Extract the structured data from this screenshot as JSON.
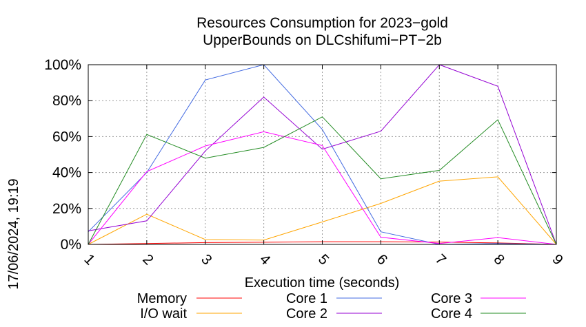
{
  "timestamp": "17/06/2024, 19:19",
  "chart_data": {
    "type": "line",
    "title": [
      "Resources Consumption for 2023−gold",
      "UpperBounds on DLCshifumi−PT−2b"
    ],
    "xlabel": "Execution time (seconds)",
    "ylabel": "",
    "x": [
      1,
      2,
      3,
      4,
      5,
      6,
      7,
      8,
      9
    ],
    "x_tick_labels": [
      "1",
      "2",
      "3",
      "4",
      "5",
      "6",
      "7",
      "8",
      "9"
    ],
    "xlim": [
      1,
      9
    ],
    "ylim": [
      0,
      100
    ],
    "y_ticks": [
      0,
      20,
      40,
      60,
      80,
      100
    ],
    "y_tick_labels": [
      "0%",
      "20%",
      "40%",
      "60%",
      "80%",
      "100%"
    ],
    "grid": true,
    "legend_position": "bottom",
    "series": [
      {
        "name": "Memory",
        "color": "#ff0000",
        "values": [
          0,
          0.5,
          1,
          1.2,
          1.5,
          1.5,
          1.3,
          0.8,
          0
        ]
      },
      {
        "name": "I/O wait",
        "color": "#ffa500",
        "values": [
          0,
          16.8,
          2.7,
          2.4,
          12.5,
          22.8,
          35.2,
          37.6,
          0
        ]
      },
      {
        "name": "Core 1",
        "color": "#4169e1",
        "values": [
          7,
          40,
          91.5,
          100,
          64,
          7,
          0,
          0.5,
          0
        ]
      },
      {
        "name": "Core 2",
        "color": "#9400d3",
        "values": [
          7.5,
          13.1,
          52,
          82,
          53,
          63,
          100,
          88,
          0
        ]
      },
      {
        "name": "Core 3",
        "color": "#ff00ff",
        "values": [
          0,
          40.5,
          54.8,
          62.7,
          55,
          4,
          0.5,
          3.8,
          0
        ]
      },
      {
        "name": "Core 4",
        "color": "#228b22",
        "values": [
          0,
          61.2,
          48,
          54,
          71,
          36.5,
          41.2,
          69.4,
          0
        ]
      }
    ]
  }
}
